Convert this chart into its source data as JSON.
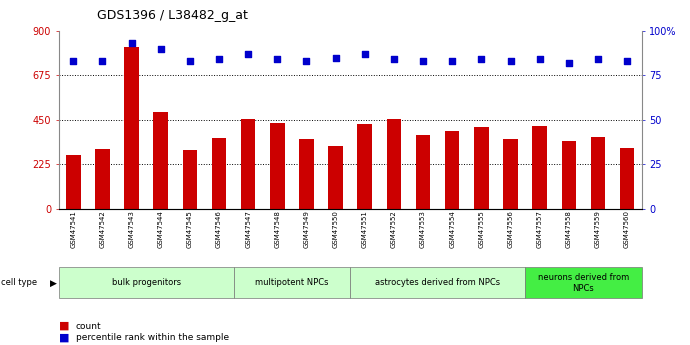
{
  "title": "GDS1396 / L38482_g_at",
  "samples": [
    "GSM47541",
    "GSM47542",
    "GSM47543",
    "GSM47544",
    "GSM47545",
    "GSM47546",
    "GSM47547",
    "GSM47548",
    "GSM47549",
    "GSM47550",
    "GSM47551",
    "GSM47552",
    "GSM47553",
    "GSM47554",
    "GSM47555",
    "GSM47556",
    "GSM47557",
    "GSM47558",
    "GSM47559",
    "GSM47560"
  ],
  "counts": [
    270,
    305,
    820,
    490,
    295,
    360,
    455,
    435,
    355,
    320,
    430,
    455,
    375,
    395,
    415,
    355,
    420,
    345,
    365,
    310
  ],
  "percentiles": [
    83,
    83,
    93,
    90,
    83,
    84,
    87,
    84,
    83,
    85,
    87,
    84,
    83,
    83,
    84,
    83,
    84,
    82,
    84,
    83
  ],
  "ylim_left": [
    0,
    900
  ],
  "ylim_right": [
    0,
    100
  ],
  "yticks_left": [
    0,
    225,
    450,
    675,
    900
  ],
  "yticks_right": [
    0,
    25,
    50,
    75,
    100
  ],
  "groups": [
    {
      "label": "bulk progenitors",
      "start": 0,
      "end": 6,
      "color": "#ccffcc"
    },
    {
      "label": "multipotent NPCs",
      "start": 6,
      "end": 10,
      "color": "#ccffcc"
    },
    {
      "label": "astrocytes derived from NPCs",
      "start": 10,
      "end": 16,
      "color": "#ccffcc"
    },
    {
      "label": "neurons derived from\nNPCs",
      "start": 16,
      "end": 20,
      "color": "#44ee44"
    }
  ],
  "bar_color": "#cc0000",
  "scatter_color": "#0000cc",
  "title_fontsize": 9,
  "left_tick_color": "#cc0000",
  "right_tick_color": "#0000cc",
  "tick_fontsize": 7,
  "xlabel_fontsize": 5,
  "group_label_fontsize": 6
}
